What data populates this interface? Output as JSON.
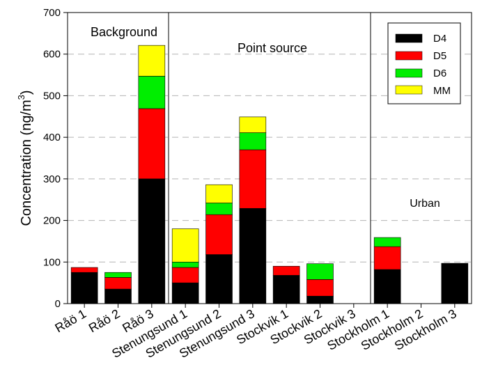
{
  "chart_data": {
    "type": "bar",
    "stacked": true,
    "ylabel": "Concentration (ng/m",
    "ylabel_superscript": "3",
    "ylabel_suffix": ")",
    "ylim": [
      0,
      700
    ],
    "yticks": [
      0,
      100,
      200,
      300,
      400,
      500,
      600,
      700
    ],
    "grid": "horizontal dashed",
    "legend_position": "top-right",
    "categories": [
      "Råö 1",
      "Råö 2",
      "Råö 3",
      "Stenungsund 1",
      "Stenungsund 2",
      "Stenungsund 3",
      "Stockvik 1",
      "Stockvik 2",
      "Stockvik 3",
      "Stockholm 1",
      "Stockholm 2",
      "Stockholm 3"
    ],
    "series": [
      {
        "name": "D4",
        "color": "#000000",
        "values": [
          75,
          35,
          300,
          50,
          118,
          229,
          68,
          18,
          0,
          82,
          0,
          97
        ]
      },
      {
        "name": "D5",
        "color": "#ff0000",
        "values": [
          12,
          28,
          169,
          37,
          96,
          141,
          22,
          40,
          0,
          55,
          0,
          0
        ]
      },
      {
        "name": "D6",
        "color": "#00ee00",
        "values": [
          0,
          12,
          78,
          13,
          28,
          41,
          0,
          38,
          0,
          22,
          0,
          0
        ]
      },
      {
        "name": "MM",
        "color": "#ffff00",
        "values": [
          0,
          0,
          74,
          80,
          44,
          38,
          0,
          0,
          0,
          0,
          0,
          0
        ]
      }
    ],
    "groups": [
      {
        "label": "Background",
        "categories": [
          0,
          1,
          2
        ]
      },
      {
        "label": "Point source",
        "categories": [
          3,
          4,
          5,
          6,
          7,
          8
        ]
      },
      {
        "label": "Urban",
        "categories": [
          9,
          10,
          11
        ]
      }
    ]
  }
}
